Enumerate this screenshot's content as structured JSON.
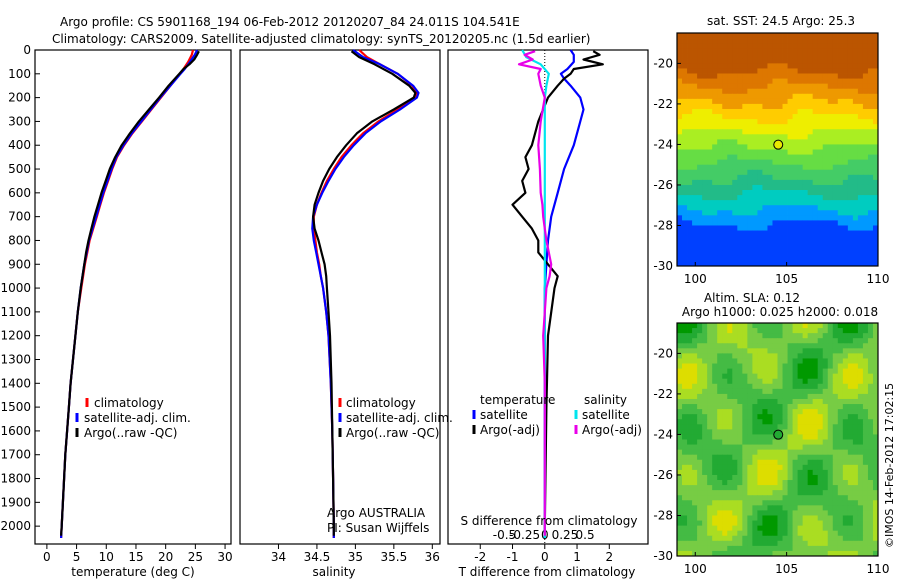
{
  "figure": {
    "title_line1": "Argo profile: CS 5901168_194 06-Feb-2012 20120207_84 24.011S 104.541E",
    "title_line2": "Climatology: CARS2009. Satellite-adjusted climatology: synTS_20120205.nc (1.5d earlier)",
    "colors": {
      "climatology": "#ff0000",
      "satellite": "#0000ff",
      "argo": "#000000",
      "salinity_satellite": "#00e5ee",
      "salinity_argo": "#e800e8",
      "zero_line": "#000000"
    }
  },
  "chart_data": [
    {
      "type": "line",
      "xlabel": "temperature (deg C)",
      "ylabel": "",
      "xlim": [
        -2,
        31
      ],
      "ylim": [
        2075,
        0
      ],
      "x_ticks": [
        "0",
        "5",
        "10",
        "15",
        "20",
        "25",
        "30"
      ],
      "y_ticks": [
        "0",
        "100",
        "200",
        "300",
        "400",
        "500",
        "600",
        "700",
        "800",
        "900",
        "1000",
        "1100",
        "1200",
        "1300",
        "1400",
        "1500",
        "1600",
        "1700",
        "1800",
        "1900",
        "2000"
      ],
      "legend": {
        "placement": "lower-left",
        "entries": [
          "climatology",
          "satellite-adj. clim.",
          "Argo(..raw -QC)"
        ]
      },
      "series": [
        {
          "name": "climatology",
          "color": "#ff0000",
          "depth": [
            0,
            20,
            50,
            80,
            100,
            150,
            200,
            250,
            300,
            350,
            400,
            450,
            500,
            550,
            600,
            650,
            700,
            750,
            800,
            850,
            900,
            1000,
            1100,
            1200,
            1300,
            1400,
            1500,
            1600,
            1700,
            1800,
            1900,
            2000,
            2050
          ],
          "values": [
            24.6,
            24.4,
            23.8,
            23.0,
            22.4,
            20.8,
            19.2,
            17.6,
            16.0,
            14.4,
            13.0,
            11.8,
            11.0,
            10.3,
            9.6,
            9.0,
            8.4,
            7.8,
            7.2,
            6.8,
            6.4,
            5.8,
            5.2,
            4.8,
            4.4,
            4.0,
            3.7,
            3.4,
            3.1,
            2.9,
            2.7,
            2.5,
            2.4
          ]
        },
        {
          "name": "satellite-adj. clim.",
          "color": "#0000ff",
          "depth": [
            0,
            20,
            50,
            80,
            100,
            150,
            200,
            250,
            300,
            350,
            400,
            450,
            500,
            550,
            600,
            650,
            700,
            750,
            800,
            850,
            900,
            1000,
            1100,
            1200,
            1300,
            1400,
            1500,
            1600,
            1700,
            1800,
            1900,
            2000,
            2050
          ],
          "values": [
            25.3,
            24.9,
            24.1,
            23.2,
            22.5,
            20.8,
            19.1,
            17.5,
            15.9,
            14.3,
            12.9,
            11.7,
            10.9,
            10.2,
            9.5,
            8.9,
            8.3,
            7.7,
            7.1,
            6.7,
            6.3,
            5.7,
            5.2,
            4.8,
            4.4,
            4.0,
            3.7,
            3.4,
            3.1,
            2.9,
            2.7,
            2.5,
            2.4
          ]
        },
        {
          "name": "Argo(..raw -QC)",
          "color": "#000000",
          "depth": [
            5,
            20,
            40,
            60,
            80,
            100,
            150,
            200,
            250,
            300,
            350,
            400,
            450,
            500,
            550,
            600,
            650,
            700,
            750,
            800,
            850,
            900,
            1000,
            1100,
            1200,
            1300,
            1400,
            1500,
            1600,
            1700,
            1800,
            1900,
            2000,
            2040
          ],
          "values": [
            25.6,
            25.3,
            24.8,
            24.0,
            23.0,
            22.3,
            20.5,
            18.9,
            17.2,
            15.5,
            14.0,
            12.6,
            11.5,
            10.6,
            9.9,
            9.2,
            8.6,
            8.0,
            7.5,
            7.0,
            6.6,
            6.3,
            5.7,
            5.2,
            4.8,
            4.4,
            4.0,
            3.7,
            3.4,
            3.1,
            2.9,
            2.7,
            2.5,
            2.4
          ]
        }
      ]
    },
    {
      "type": "line",
      "xlabel": "salinity",
      "xlim": [
        33.5,
        36.1
      ],
      "ylim": [
        2075,
        0
      ],
      "x_ticks": [
        "34",
        "34.5",
        "35",
        "35.5",
        "36"
      ],
      "legend": {
        "placement": "lower-right",
        "entries": [
          "climatology",
          "satellite-adj. clim.",
          "Argo(..raw -QC)"
        ]
      },
      "annotations": [
        "Argo AUSTRALIA",
        "PI: Susan Wijffels"
      ],
      "series": [
        {
          "name": "climatology",
          "color": "#ff0000",
          "depth": [
            0,
            30,
            60,
            100,
            150,
            180,
            200,
            250,
            300,
            350,
            400,
            450,
            500,
            550,
            600,
            650,
            700,
            750,
            800,
            850,
            900,
            950,
            1000,
            1100,
            1200,
            1400,
            1600,
            1800,
            2000,
            2050
          ],
          "values": [
            35.05,
            35.15,
            35.32,
            35.55,
            35.74,
            35.8,
            35.78,
            35.55,
            35.3,
            35.1,
            34.95,
            34.82,
            34.72,
            34.63,
            34.56,
            34.5,
            34.46,
            34.46,
            34.48,
            34.5,
            34.53,
            34.55,
            34.58,
            34.62,
            34.65,
            34.68,
            34.7,
            34.71,
            34.72,
            34.72
          ]
        },
        {
          "name": "satellite-adj. clim.",
          "color": "#0000ff",
          "depth": [
            0,
            30,
            60,
            100,
            150,
            180,
            200,
            250,
            300,
            350,
            400,
            450,
            500,
            550,
            600,
            650,
            700,
            750,
            800,
            850,
            900,
            950,
            1000,
            1100,
            1200,
            1400,
            1600,
            1800,
            2000,
            2050
          ],
          "values": [
            34.97,
            35.1,
            35.32,
            35.55,
            35.75,
            35.82,
            35.8,
            35.58,
            35.33,
            35.13,
            34.98,
            34.85,
            34.74,
            34.65,
            34.57,
            34.5,
            34.45,
            34.44,
            34.46,
            34.49,
            34.52,
            34.55,
            34.58,
            34.62,
            34.65,
            34.68,
            34.7,
            34.71,
            34.72,
            34.72
          ]
        },
        {
          "name": "Argo(..raw -QC)",
          "color": "#000000",
          "depth": [
            5,
            30,
            60,
            100,
            150,
            180,
            200,
            250,
            300,
            350,
            400,
            450,
            500,
            550,
            600,
            650,
            700,
            750,
            800,
            850,
            900,
            950,
            1000,
            1100,
            1200,
            1400,
            1600,
            1800,
            2000,
            2040
          ],
          "values": [
            34.95,
            35.05,
            35.25,
            35.48,
            35.7,
            35.78,
            35.76,
            35.5,
            35.22,
            35.02,
            34.88,
            34.76,
            34.66,
            34.58,
            34.52,
            34.47,
            34.45,
            34.47,
            34.52,
            34.56,
            34.6,
            34.62,
            34.63,
            34.65,
            34.67,
            34.69,
            34.7,
            34.71,
            34.72,
            34.72
          ]
        }
      ]
    },
    {
      "type": "line",
      "xlabel": "T difference from climatology",
      "xlabel_top": "S difference from climatology",
      "xlim": [
        -3,
        3.2
      ],
      "ylim": [
        2075,
        0
      ],
      "x_ticks": [
        "-2",
        "-1",
        "0",
        "1",
        "2"
      ],
      "x_ticks_salinity": [
        "-0.5",
        "-0.25",
        "0",
        "0.25",
        "0.5"
      ],
      "legend": {
        "placement": "lower",
        "entries": [
          "temperature",
          "satellite",
          "Argo(-adj)",
          "salinity",
          "satellite",
          "Argo(-adj)"
        ]
      },
      "series": [
        {
          "name": "satellite",
          "quantity": "temperature",
          "color": "#0000ff",
          "depth": [
            0,
            20,
            50,
            80,
            100,
            120,
            150,
            200,
            250,
            300,
            400,
            500,
            600,
            700,
            800,
            900,
            1000,
            1200,
            1500,
            2000,
            2050
          ],
          "values": [
            0.8,
            0.9,
            0.9,
            0.7,
            0.5,
            0.6,
            0.8,
            1.1,
            1.2,
            1.1,
            0.9,
            0.6,
            0.4,
            0.2,
            0.1,
            0.05,
            0.0,
            0.0,
            0.0,
            0.0,
            0.0
          ]
        },
        {
          "name": "Argo(-adj)",
          "quantity": "temperature",
          "color": "#000000",
          "depth": [
            5,
            20,
            40,
            60,
            80,
            100,
            120,
            150,
            200,
            300,
            400,
            450,
            500,
            550,
            600,
            650,
            700,
            750,
            800,
            850,
            900,
            950,
            1000,
            1200,
            1500,
            2000,
            2040
          ],
          "values": [
            1.5,
            1.7,
            1.2,
            1.8,
            0.9,
            0.8,
            0.6,
            0.4,
            0.1,
            -0.2,
            -0.4,
            -0.6,
            -0.5,
            -0.7,
            -0.6,
            -1.0,
            -0.7,
            -0.4,
            -0.2,
            -0.2,
            0.1,
            0.4,
            0.3,
            0.1,
            0.05,
            0.0,
            0.0
          ]
        },
        {
          "name": "satellite",
          "quantity": "salinity",
          "color": "#00e5ee",
          "depth": [
            0,
            30,
            60,
            100,
            150,
            200,
            300,
            400,
            500,
            700,
            900,
            1100,
            1300,
            1600,
            2000,
            2050
          ],
          "values": [
            -0.28,
            -0.23,
            -0.05,
            0.05,
            0.02,
            0.0,
            0.0,
            0.0,
            0.0,
            0.0,
            0.0,
            0.0,
            0.0,
            0.0,
            0.0,
            0.0
          ]
        },
        {
          "name": "Argo(-adj)",
          "quantity": "salinity",
          "color": "#e800e8",
          "depth": [
            5,
            20,
            40,
            60,
            80,
            100,
            150,
            200,
            300,
            400,
            500,
            600,
            650,
            700,
            750,
            800,
            850,
            900,
            950,
            1000,
            1100,
            1200,
            1400,
            1600,
            1800,
            2000,
            2040
          ],
          "values": [
            -0.12,
            -0.25,
            -0.15,
            -0.32,
            -0.05,
            -0.08,
            -0.05,
            0.0,
            -0.05,
            -0.08,
            -0.06,
            -0.05,
            -0.03,
            -0.02,
            0.0,
            0.02,
            0.05,
            0.08,
            0.06,
            0.02,
            0.0,
            -0.02,
            0.0,
            0.0,
            0.0,
            0.0,
            0.0
          ]
        }
      ]
    },
    {
      "type": "heatmap",
      "title": "sat. SST: 24.5  Argo: 25.3",
      "xlim": [
        99,
        110
      ],
      "ylim": [
        -30,
        -18.5
      ],
      "x_ticks": [
        "100",
        "105",
        "110"
      ],
      "y_ticks": [
        "-20",
        "-22",
        "-24",
        "-26",
        "-28",
        "-30"
      ],
      "marker": {
        "lon": 104.541,
        "lat": -24.011,
        "color": "#e8e800"
      },
      "palette": [
        "#0040ff",
        "#0099ff",
        "#00ccc0",
        "#22bb88",
        "#44cc66",
        "#66dd44",
        "#aaee22",
        "#eeee00",
        "#ffcc00",
        "#ee9900",
        "#dd7700",
        "#bb5500"
      ]
    },
    {
      "type": "heatmap",
      "title_line1": "Altim. SLA: 0.12",
      "title_line2": "Argo h1000: 0.025 h2000: 0.018",
      "xlim": [
        99,
        110
      ],
      "ylim": [
        -30,
        -18.5
      ],
      "x_ticks": [
        "100",
        "105",
        "110"
      ],
      "y_ticks": [
        "-20",
        "-22",
        "-24",
        "-26",
        "-28",
        "-30"
      ],
      "marker": {
        "lon": 104.541,
        "lat": -24.011,
        "color": "#22aa33"
      },
      "palette": [
        "#009900",
        "#22aa33",
        "#44bb44",
        "#77cc44",
        "#aadd22",
        "#dddd00",
        "#eecc00"
      ]
    }
  ],
  "footer": {
    "credit": "©IMOS 14-Feb-2012 17:02:15"
  }
}
